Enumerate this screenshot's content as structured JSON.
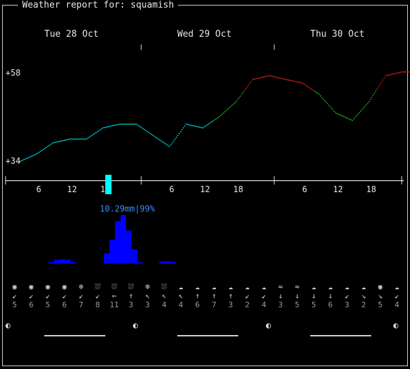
{
  "window": {
    "title": "Weather report for: squamish"
  },
  "days": [
    "Tue 28 Oct",
    "Wed 29 Oct",
    "Thu 30 Oct"
  ],
  "y_axis": {
    "max_label": "+58",
    "min_label": "+34"
  },
  "hour_ticks": [
    "6",
    "12",
    "18",
    "6",
    "12",
    "18",
    "6",
    "12",
    "18"
  ],
  "precip": {
    "label": "10.29mm|99%"
  },
  "chart_data": {
    "type": "line",
    "title": "",
    "ylim": [
      34,
      58
    ],
    "x_hours": [
      0,
      3,
      6,
      9,
      12,
      15,
      18,
      21,
      24,
      27,
      30,
      33,
      36,
      39,
      42,
      45,
      48,
      51,
      54,
      57,
      60,
      63,
      66,
      69,
      72
    ],
    "temperature": [
      34,
      36,
      39,
      40,
      40,
      43,
      44,
      44,
      41,
      38,
      44,
      43,
      46,
      50,
      56,
      57,
      56,
      55,
      52,
      47,
      45,
      50,
      57,
      58,
      58
    ],
    "temp_colors": {
      "cold": "#00e5e5",
      "mild": "#1fbf1f",
      "warm": "#e02020"
    },
    "precip_x": [
      4,
      5,
      6,
      7,
      8,
      9,
      10,
      11,
      12,
      13,
      14,
      15,
      16,
      17,
      18,
      19,
      20,
      21,
      22,
      23,
      24,
      25,
      26,
      27,
      28,
      29,
      30,
      31,
      32,
      33,
      34,
      35
    ],
    "precip_mm": [
      0,
      0,
      0.3,
      0.8,
      0.9,
      0.8,
      0.3,
      0,
      0,
      0,
      0,
      0,
      2.2,
      5,
      9,
      10.3,
      7,
      3,
      0.3,
      0,
      0,
      0,
      0.4,
      0.5,
      0.3,
      0,
      0,
      0,
      0,
      0,
      0,
      0
    ]
  },
  "forecast": [
    {
      "icon": "sun-icon",
      "glyph": "◉",
      "dir": "↙",
      "speed": "5"
    },
    {
      "icon": "sun-icon",
      "glyph": "◉",
      "dir": "↙",
      "speed": "6"
    },
    {
      "icon": "sun-icon",
      "glyph": "◉",
      "dir": "↙",
      "speed": "5"
    },
    {
      "icon": "sun-icon",
      "glyph": "◉",
      "dir": "↙",
      "speed": "6"
    },
    {
      "icon": "snow-icon",
      "glyph": "❄",
      "dir": "↙",
      "speed": "7"
    },
    {
      "icon": "rain-cloud-icon",
      "glyph": "⛆",
      "dir": "↙",
      "speed": "8"
    },
    {
      "icon": "rain-cloud-icon",
      "glyph": "⛆",
      "dir": "←",
      "speed": "11"
    },
    {
      "icon": "rain-cloud-icon",
      "glyph": "⛆",
      "dir": "↑",
      "speed": "3"
    },
    {
      "icon": "snow-icon",
      "glyph": "❄",
      "dir": "↖",
      "speed": "3"
    },
    {
      "icon": "rain-cloud-icon",
      "glyph": "⛆",
      "dir": "↖",
      "speed": "4"
    },
    {
      "icon": "cloud-icon",
      "glyph": "☁",
      "dir": "↖",
      "speed": "4"
    },
    {
      "icon": "cloud-icon",
      "glyph": "☁",
      "dir": "↑",
      "speed": "6"
    },
    {
      "icon": "cloud-icon",
      "glyph": "☁",
      "dir": "↑",
      "speed": "7"
    },
    {
      "icon": "cloud-icon",
      "glyph": "☁",
      "dir": "↑",
      "speed": "3"
    },
    {
      "icon": "cloud-icon",
      "glyph": "☁",
      "dir": "↙",
      "speed": "2"
    },
    {
      "icon": "cloud-icon",
      "glyph": "☁",
      "dir": "↙",
      "speed": "4"
    },
    {
      "icon": "fog-icon",
      "glyph": "≈",
      "dir": "↓",
      "speed": "3"
    },
    {
      "icon": "fog-icon",
      "glyph": "≈",
      "dir": "↓",
      "speed": "5"
    },
    {
      "icon": "cloud-icon",
      "glyph": "☁",
      "dir": "↓",
      "speed": "5"
    },
    {
      "icon": "cloud-icon",
      "glyph": "☁",
      "dir": "↓",
      "speed": "6"
    },
    {
      "icon": "cloud-icon",
      "glyph": "☁",
      "dir": "↙",
      "speed": "3"
    },
    {
      "icon": "cloud-icon",
      "glyph": "☁",
      "dir": "↘",
      "speed": "2"
    },
    {
      "icon": "sun-icon",
      "glyph": "◉",
      "dir": "↘",
      "speed": "5"
    },
    {
      "icon": "cloud-icon",
      "glyph": "☁",
      "dir": "↙",
      "speed": "4"
    }
  ],
  "moon": {
    "icon": "half-moon-icon",
    "glyph": "◐"
  },
  "colors": {
    "precip": "#0000ff",
    "cursor": "#00ffff",
    "label": "#3a8cff"
  }
}
